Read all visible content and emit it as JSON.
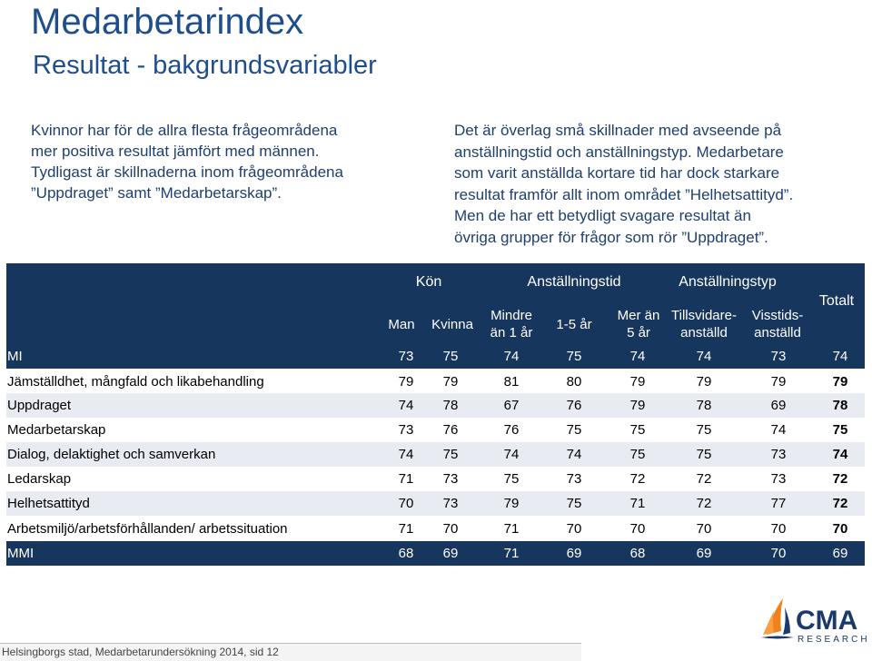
{
  "title": "Medarbetarindex",
  "subtitle": "Resultat - bakgrundsvariabler",
  "intro_left": [
    "Kvinnor har för de allra flesta frågeområdena",
    "mer positiva resultat jämfört med männen.",
    "Tydligast är skillnaderna inom frågeområdena",
    "”Uppdraget” samt ”Medarbetarskap”."
  ],
  "intro_right": [
    "Det är överlag små skillnader med avseende på",
    "anställningstid och anställningstyp. Medarbetare",
    "som varit anställda kortare tid har dock starkare",
    "resultat framför allt inom området ”Helhetsattityd”.",
    "Men de har ett betydligt svagare resultat än",
    "övriga grupper för frågor som rör ”Uppdraget”."
  ],
  "table": {
    "groups": {
      "kon": "Kön",
      "anstallningstid": "Anställningstid",
      "anstallningstyp": "Anställningstyp",
      "totalt": "Totalt"
    },
    "columns": {
      "man": "Man",
      "kvinna": "Kvinna",
      "mindre_1": "Mindre",
      "mindre_2": "än 1 år",
      "ett_fem": "1-5 år",
      "mer_1": "Mer än",
      "mer_2": "5 år",
      "tills_1": "Tillsvidare-",
      "tills_2": "anställd",
      "viss_1": "Visstids-",
      "viss_2": "anställd"
    },
    "rows": [
      {
        "label": "MI",
        "values": [
          "73",
          "75",
          "74",
          "75",
          "74",
          "74",
          "73",
          "74"
        ]
      },
      {
        "label": "Jämställdhet, mångfald och likabehandling",
        "values": [
          "79",
          "79",
          "81",
          "80",
          "79",
          "79",
          "79",
          "79"
        ]
      },
      {
        "label": "Uppdraget",
        "values": [
          "74",
          "78",
          "67",
          "76",
          "79",
          "78",
          "69",
          "78"
        ]
      },
      {
        "label": "Medarbetarskap",
        "values": [
          "73",
          "76",
          "76",
          "75",
          "75",
          "75",
          "74",
          "75"
        ]
      },
      {
        "label": "Dialog, delaktighet och samverkan",
        "values": [
          "74",
          "75",
          "74",
          "74",
          "75",
          "75",
          "73",
          "74"
        ]
      },
      {
        "label": "Ledarskap",
        "values": [
          "71",
          "73",
          "75",
          "73",
          "72",
          "72",
          "73",
          "72"
        ]
      },
      {
        "label": "Helhetsattityd",
        "values": [
          "70",
          "73",
          "79",
          "75",
          "71",
          "72",
          "77",
          "72"
        ]
      },
      {
        "label": "Arbetsmiljö/arbetsförhållanden/ arbetssituation",
        "values": [
          "71",
          "70",
          "71",
          "70",
          "70",
          "70",
          "70",
          "70"
        ]
      },
      {
        "label": "MMI",
        "values": [
          "68",
          "69",
          "71",
          "69",
          "68",
          "69",
          "70",
          "69"
        ]
      }
    ]
  },
  "footer": "Helsingborgs stad, Medarbetarundersökning 2014, sid 12",
  "logo": {
    "name": "CMA",
    "tagline": "RESEARCH"
  },
  "colors": {
    "header_bg": "#17365d",
    "title": "#1f4e8c",
    "alt_row": "#e8ebf2",
    "logo_orange": "#f0821e",
    "logo_navy": "#1b3a6b"
  }
}
